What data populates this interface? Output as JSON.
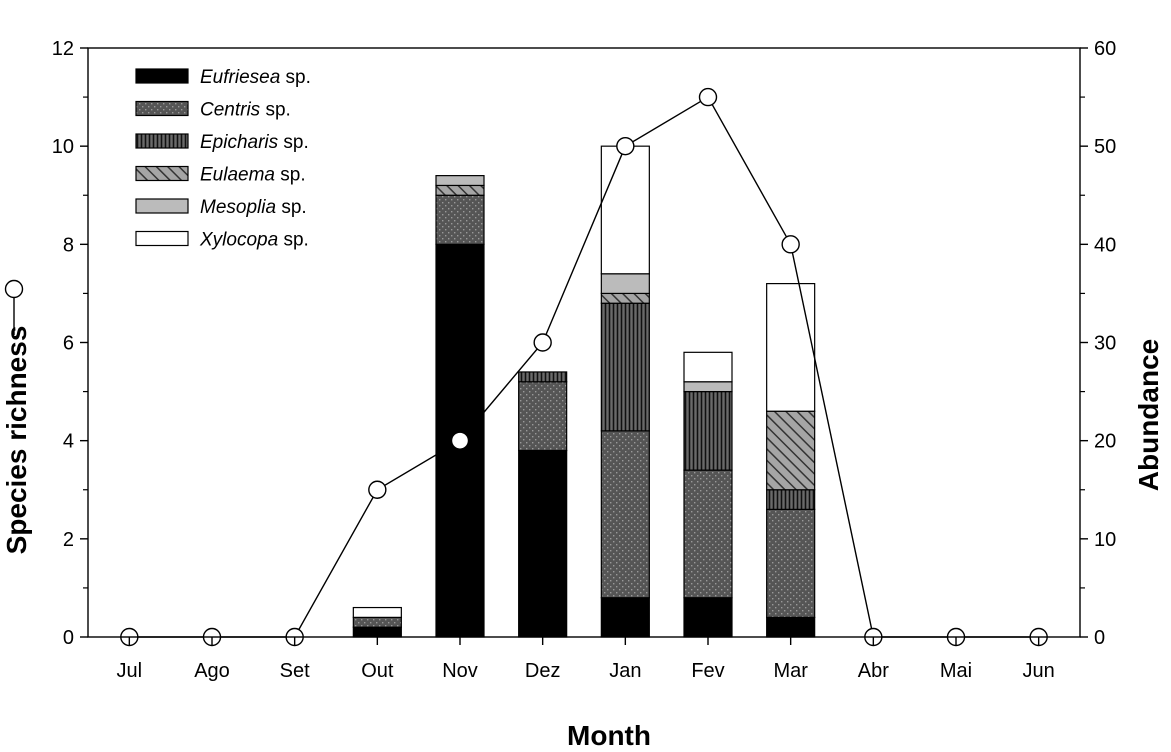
{
  "chart_data": {
    "type": "bar",
    "categories": [
      "Jul",
      "Ago",
      "Set",
      "Out",
      "Nov",
      "Dez",
      "Jan",
      "Fev",
      "Mar",
      "Abr",
      "Mai",
      "Jun"
    ],
    "xlabel": "Month",
    "ylabel_left": "Species richness",
    "ylabel_right": "Abundance",
    "ylim_left": [
      0,
      12
    ],
    "ylim_right": [
      0,
      60
    ],
    "yticks_left": [
      "0",
      "2",
      "4",
      "6",
      "8",
      "10",
      "12"
    ],
    "yticks_right": [
      "0",
      "10",
      "20",
      "30",
      "40",
      "50",
      "60"
    ],
    "grid": false,
    "legend_position": "top-left",
    "stacked_series": [
      {
        "name": "Eufriesea",
        "suffix": " sp.",
        "fill": "solid",
        "color": "#000000",
        "values": [
          0,
          0,
          0,
          1,
          40,
          19,
          4,
          4,
          2,
          0,
          0,
          0
        ]
      },
      {
        "name": "Centris",
        "suffix": " sp.",
        "fill": "dots",
        "color": "#555555",
        "values": [
          0,
          0,
          0,
          1,
          5,
          7,
          17,
          13,
          11,
          0,
          0,
          0
        ]
      },
      {
        "name": "Epicharis",
        "suffix": " sp.",
        "fill": "vertical-lines",
        "color": "#666666",
        "values": [
          0,
          0,
          0,
          0,
          0,
          1,
          13,
          8,
          2,
          0,
          0,
          0
        ]
      },
      {
        "name": "Eulaema",
        "suffix": " sp.",
        "fill": "diagonal-lines",
        "color": "#888888",
        "values": [
          0,
          0,
          0,
          0,
          1,
          0,
          1,
          0,
          8,
          0,
          0,
          0
        ]
      },
      {
        "name": "Mesoplia",
        "suffix": " sp.",
        "fill": "solid",
        "color": "#bbbbbb",
        "values": [
          0,
          0,
          0,
          0,
          1,
          0,
          2,
          1,
          0,
          0,
          0,
          0
        ]
      },
      {
        "name": "Xylocopa",
        "suffix": " sp.",
        "fill": "solid",
        "color": "#ffffff",
        "values": [
          0,
          0,
          0,
          1,
          0,
          0,
          13,
          3,
          13,
          0,
          0,
          0
        ]
      }
    ],
    "line_series": {
      "axis": "left",
      "marker": "open-circle",
      "values": [
        0,
        0,
        0,
        3,
        4,
        6,
        10,
        11,
        8,
        0,
        0,
        0
      ]
    }
  }
}
